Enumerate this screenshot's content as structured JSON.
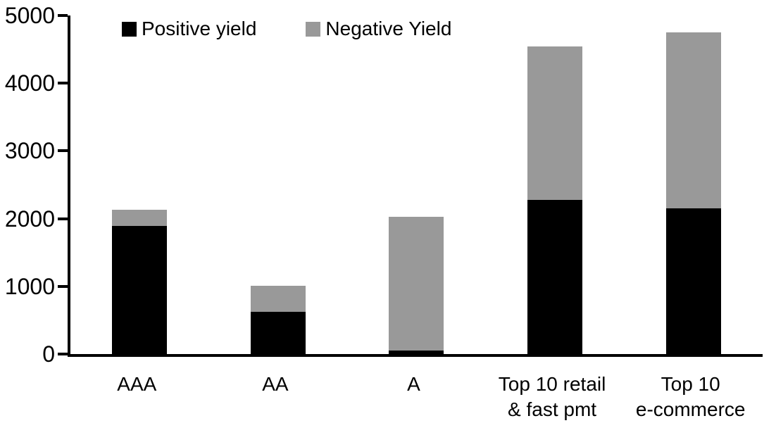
{
  "chart_data": {
    "type": "bar",
    "stacked": true,
    "title": "",
    "categories": [
      "AAA",
      "AA",
      "A",
      "Top 10 retail & fast pmt",
      "Top 10 e-commerce"
    ],
    "category_label_lines": [
      [
        "AAA"
      ],
      [
        "AA"
      ],
      [
        "A"
      ],
      [
        "Top 10 retail",
        "& fast pmt"
      ],
      [
        "Top 10",
        "e-commerce"
      ]
    ],
    "series": [
      {
        "name": "Positive yield",
        "color": "#000000",
        "values": [
          1890,
          620,
          50,
          2280,
          2150
        ]
      },
      {
        "name": "Negative Yield",
        "color": "#999999",
        "values": [
          240,
          380,
          1980,
          2270,
          2600
        ]
      }
    ],
    "totals": [
      2130,
      1000,
      2030,
      4550,
      4750
    ],
    "ylim": [
      0,
      5000
    ],
    "yticks": [
      "0",
      "1000",
      "2000",
      "3000",
      "4000",
      "5000"
    ],
    "grid": false,
    "legend_position": "top-inside",
    "axis_color": "#000000",
    "background_color": "#ffffff"
  }
}
